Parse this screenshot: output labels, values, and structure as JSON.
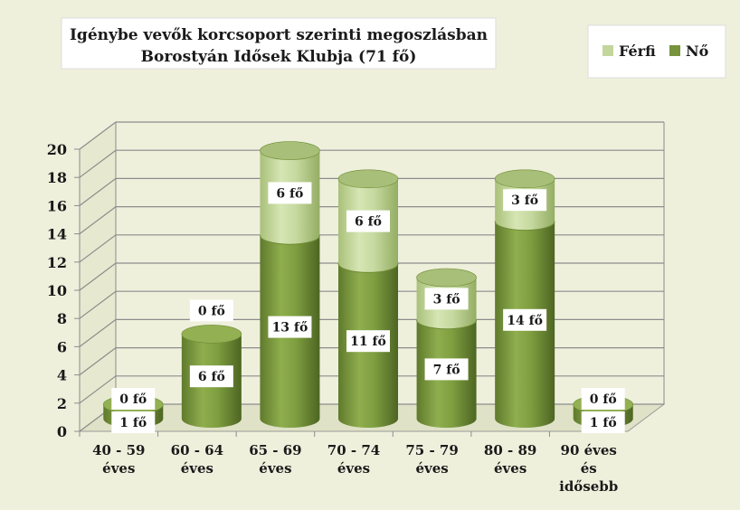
{
  "chart_data": {
    "type": "bar",
    "stacked": true,
    "title": "Igénybe vevők korcsoport szerinti megoszlásban",
    "subtitle": "Borostyán Idősek Klubja (71 fő)",
    "categories": [
      [
        "40 - 59",
        "éves"
      ],
      [
        "60 - 64",
        "éves"
      ],
      [
        "65 - 69",
        "éves"
      ],
      [
        "70 - 74",
        "éves"
      ],
      [
        "75 - 79",
        "éves"
      ],
      [
        "80 - 89",
        "éves"
      ],
      [
        "90 éves",
        "és",
        "idősebb"
      ]
    ],
    "series": [
      {
        "name": "Nő",
        "values": [
          1,
          6,
          13,
          11,
          7,
          14,
          1
        ],
        "labels": [
          "1 fő",
          "6 fő",
          "13 fő",
          "11 fő",
          "7 fő",
          "14 fő",
          "1 fő"
        ]
      },
      {
        "name": "Férfi",
        "values": [
          0,
          0,
          6,
          6,
          3,
          3,
          0
        ],
        "labels": [
          "0 fő",
          "0 fő",
          "6 fő",
          "6 fő",
          "3 fő",
          "3 fő",
          "0 fő"
        ]
      }
    ],
    "ylim": [
      0,
      20
    ],
    "yticks": [
      "0",
      "2",
      "4",
      "6",
      "8",
      "10",
      "12",
      "14",
      "16",
      "18",
      "20"
    ],
    "legend_position": "top-right",
    "grid": true,
    "colors": {
      "no": "#77933c",
      "ferfi": "#c3d69b",
      "background": "#eef0dc"
    }
  }
}
